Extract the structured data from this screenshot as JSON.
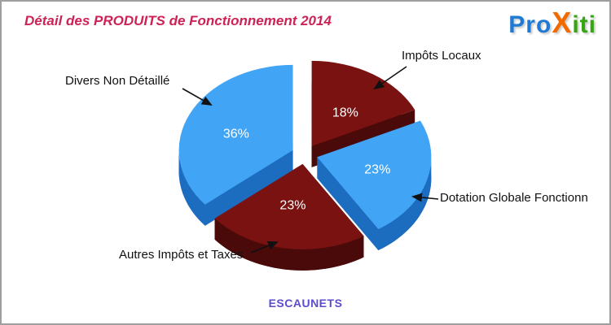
{
  "page": {
    "footer": "ESCAUNETS"
  },
  "logo": {
    "pro": "Pro",
    "x": "X",
    "iti": "iti",
    "colors": {
      "pro": "#1e7ad4",
      "x": "#f06a00",
      "iti": "#35a513"
    }
  },
  "chart_data": {
    "type": "pie",
    "title": "Détail des PRODUITS de Fonctionnement 2014",
    "title_color": "#cc2255",
    "labels": [
      "Impôts Locaux",
      "Dotation Globale Fonctionn",
      "Autres Impôts et Taxes",
      "Divers Non Détaillé"
    ],
    "values": [
      18,
      23,
      23,
      36
    ],
    "percent_labels": [
      "18%",
      "23%",
      "23%",
      "36%"
    ],
    "colors": [
      "#7a1212",
      "#41a4f5",
      "#7a1212",
      "#41a4f5"
    ],
    "side_colors": [
      "#4a0a0a",
      "#1c6cc0",
      "#4a0a0a",
      "#1c6cc0"
    ],
    "percent_text_color": "#ffffff",
    "label_text_color": "#111111",
    "footer_color": "#5b4ccf",
    "start_angle_deg": -90,
    "direction": "clockwise",
    "style": "3d-exploded",
    "legend_position": "outside-callouts"
  }
}
